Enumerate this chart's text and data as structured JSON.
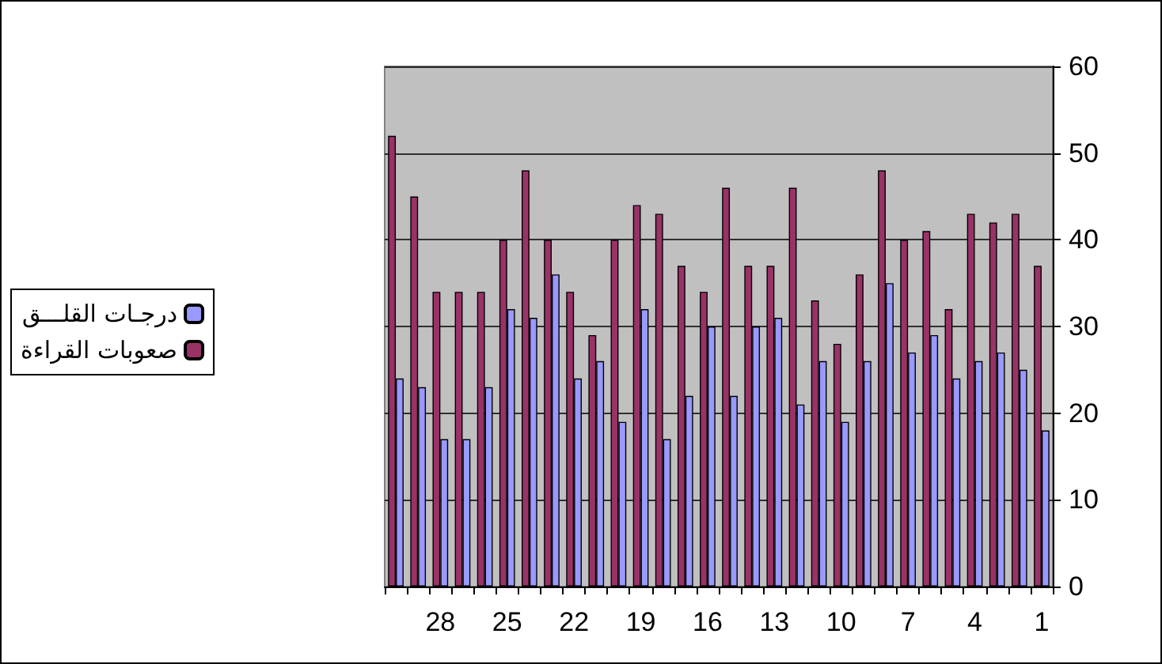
{
  "chart_data": {
    "type": "bar",
    "categories": [
      null,
      null,
      "28",
      null,
      null,
      "25",
      null,
      null,
      "22",
      null,
      null,
      "19",
      null,
      null,
      "16",
      null,
      null,
      "13",
      null,
      null,
      "10",
      null,
      null,
      "7",
      null,
      null,
      "4",
      null,
      null,
      "1"
    ],
    "series": [
      {
        "name": "درجـات القلـــق",
        "color": "#9999ff",
        "values": [
          24,
          23,
          17,
          17,
          23,
          32,
          31,
          36,
          24,
          26,
          19,
          32,
          17,
          22,
          30,
          22,
          30,
          31,
          21,
          26,
          19,
          26,
          35,
          27,
          29,
          24,
          26,
          27,
          25,
          18
        ]
      },
      {
        "name": "صعوبات القراءة",
        "color": "#993366",
        "values": [
          52,
          45,
          34,
          34,
          34,
          40,
          48,
          40,
          34,
          29,
          40,
          44,
          43,
          37,
          34,
          46,
          37,
          37,
          46,
          33,
          28,
          36,
          48,
          40,
          41,
          32,
          43,
          42,
          43,
          37
        ]
      }
    ],
    "ylim": [
      0,
      60
    ],
    "yticks": [
      0,
      10,
      20,
      30,
      40,
      50,
      60
    ],
    "grid": "y",
    "legend": "left"
  }
}
